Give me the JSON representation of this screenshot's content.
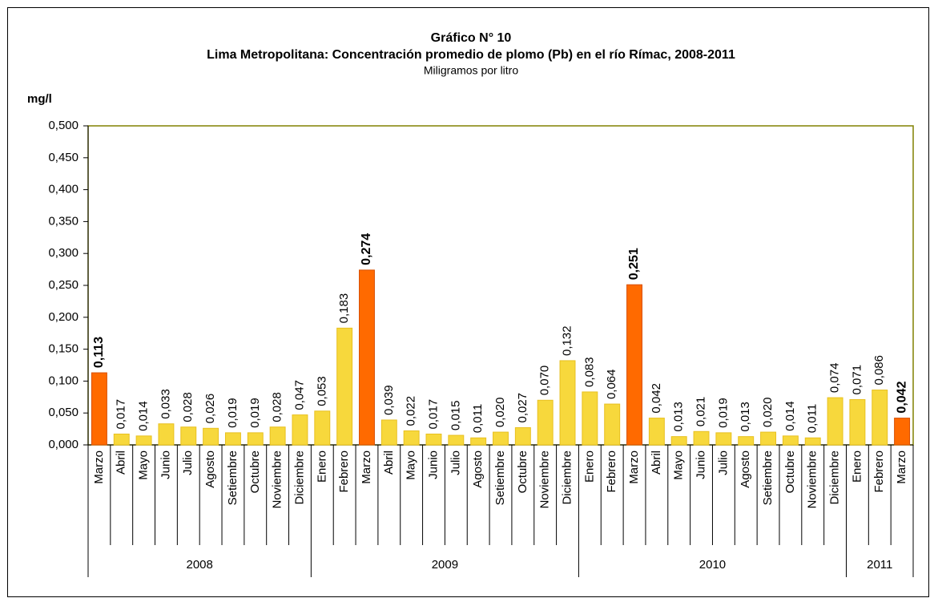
{
  "chart_data": {
    "type": "bar",
    "title": "Gráfico N° 10",
    "subtitle": "Lima Metropolitana: Concentración promedio de plomo (Pb) en el río Rímac, 2008-2011",
    "note": "Miligramos por litro",
    "y_label": "mg/l",
    "groups": [
      {
        "name": "2008",
        "categories": [
          "Marzo",
          "Abril",
          "Mayo",
          "Junio",
          "Julio",
          "Agosto",
          "Setiembre",
          "Octubre",
          "Noviembre",
          "Diciembre"
        ]
      },
      {
        "name": "2009",
        "categories": [
          "Enero",
          "Febrero",
          "Marzo",
          "Abril",
          "Mayo",
          "Junio",
          "Julio",
          "Agosto",
          "Setiembre",
          "Octubre",
          "Noviembre",
          "Diciembre"
        ]
      },
      {
        "name": "2010",
        "categories": [
          "Enero",
          "Febrero",
          "Marzo",
          "Abril",
          "Mayo",
          "Junio",
          "Julio",
          "Agosto",
          "Setiembre",
          "Octubre",
          "Noviembre",
          "Diciembre"
        ]
      },
      {
        "name": "2011",
        "categories": [
          "Enero",
          "Febrero",
          "Marzo"
        ]
      }
    ],
    "values": [
      0.113,
      0.017,
      0.014,
      0.033,
      0.028,
      0.026,
      0.019,
      0.019,
      0.028,
      0.047,
      0.053,
      0.183,
      0.274,
      0.039,
      0.022,
      0.017,
      0.015,
      0.011,
      0.02,
      0.027,
      0.07,
      0.132,
      0.083,
      0.064,
      0.251,
      0.042,
      0.013,
      0.021,
      0.019,
      0.013,
      0.02,
      0.014,
      0.011,
      0.074,
      0.071,
      0.086,
      0.042
    ],
    "value_labels": [
      "0,113",
      "0,017",
      "0,014",
      "0,033",
      "0,028",
      "0,026",
      "0,019",
      "0,019",
      "0,028",
      "0,047",
      "0,053",
      "0,183",
      "0,274",
      "0,039",
      "0,022",
      "0,017",
      "0,015",
      "0,011",
      "0,020",
      "0,027",
      "0,070",
      "0,132",
      "0,083",
      "0,064",
      "0,251",
      "0,042",
      "0,013",
      "0,021",
      "0,019",
      "0,013",
      "0,020",
      "0,014",
      "0,011",
      "0,074",
      "0,071",
      "0,086",
      "0,042"
    ],
    "color": "#f7d83c",
    "colors": [
      "#ff6a00",
      "#f7d83c",
      "#f7d83c",
      "#f7d83c",
      "#f7d83c",
      "#f7d83c",
      "#f7d83c",
      "#f7d83c",
      "#f7d83c",
      "#f7d83c",
      "#f7d83c",
      "#f7d83c",
      "#ff6a00",
      "#f7d83c",
      "#f7d83c",
      "#f7d83c",
      "#f7d83c",
      "#f7d83c",
      "#f7d83c",
      "#f7d83c",
      "#f7d83c",
      "#f7d83c",
      "#f7d83c",
      "#f7d83c",
      "#ff6a00",
      "#f7d83c",
      "#f7d83c",
      "#f7d83c",
      "#f7d83c",
      "#f7d83c",
      "#f7d83c",
      "#f7d83c",
      "#f7d83c",
      "#f7d83c",
      "#f7d83c",
      "#f7d83c",
      "#ff6a00"
    ],
    "ylim": [
      0,
      0.5
    ],
    "yticks": [
      {
        "value": 0,
        "label": "0,000"
      },
      {
        "value": 0.05,
        "label": "0,050"
      },
      {
        "value": 0.1,
        "label": "0,100"
      },
      {
        "value": 0.15,
        "label": "0,150"
      },
      {
        "value": 0.2,
        "label": "0,200"
      },
      {
        "value": 0.25,
        "label": "0,250"
      },
      {
        "value": 0.3,
        "label": "0,300"
      },
      {
        "value": 0.35,
        "label": "0,350"
      },
      {
        "value": 0.4,
        "label": "0,400"
      },
      {
        "value": 0.45,
        "label": "0,450"
      },
      {
        "value": 0.5,
        "label": "0,500"
      }
    ],
    "grid": false
  }
}
